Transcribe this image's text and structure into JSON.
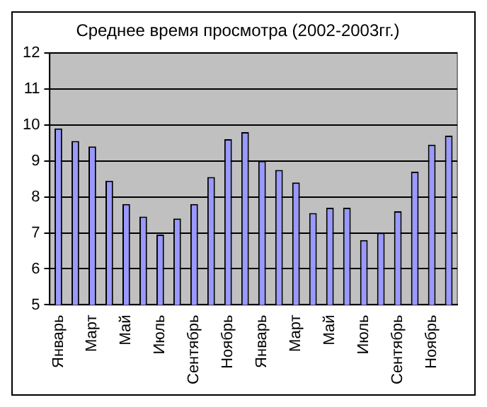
{
  "chart_data": {
    "type": "bar",
    "title": "Среднее время просмотра (2002-2003гг.)",
    "categories": [
      "Январь",
      null,
      "Март",
      null,
      "Май",
      null,
      "Июль",
      null,
      "Сентябрь",
      null,
      "Ноябрь",
      null,
      "Январь",
      null,
      "Март",
      null,
      "Май",
      null,
      "Июль",
      null,
      "Сентябрь",
      null,
      "Ноябрь",
      null
    ],
    "values": [
      9.9,
      9.55,
      9.4,
      8.45,
      7.8,
      7.45,
      6.95,
      7.4,
      7.8,
      8.55,
      9.6,
      9.8,
      9.0,
      8.75,
      8.4,
      7.55,
      7.7,
      7.7,
      6.8,
      7.0,
      7.6,
      8.7,
      9.45,
      9.7
    ],
    "color": "#9999ff",
    "ylim": [
      5,
      12
    ],
    "yticks": [
      5,
      6,
      7,
      8,
      9,
      10,
      11,
      12
    ],
    "grid": "y"
  }
}
